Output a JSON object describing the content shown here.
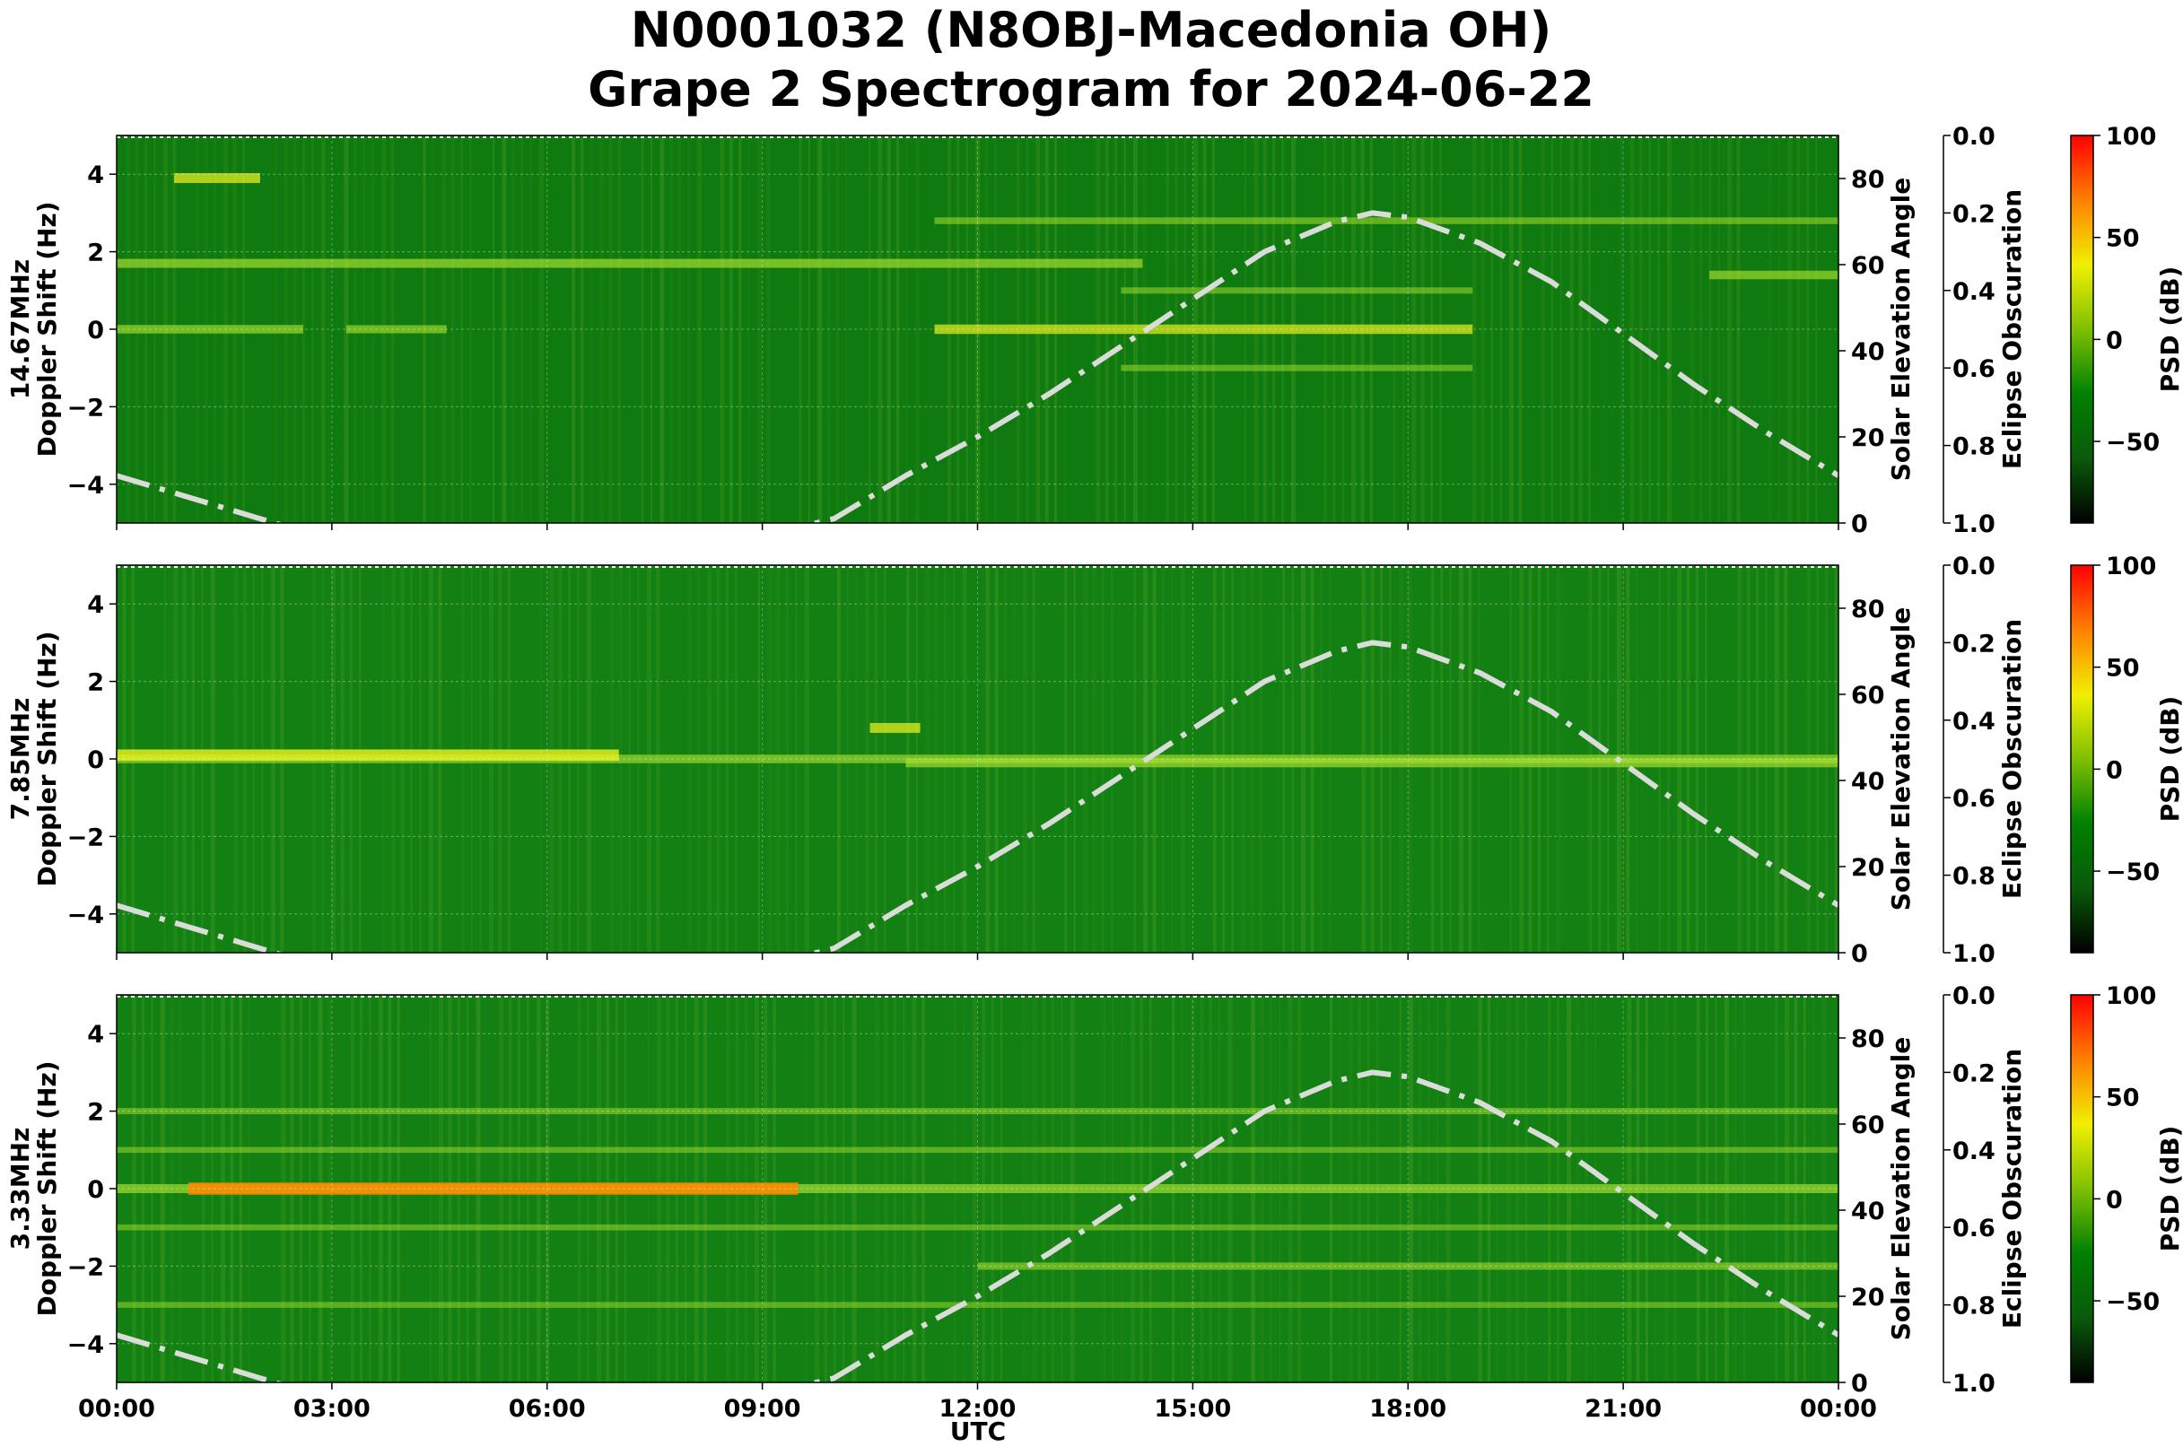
{
  "chart_data": {
    "type": "heatmap",
    "title": "N0001032 (N8OBJ-Macedonia OH)",
    "subtitle": "Grape 2 Spectrogram for 2024-06-22",
    "xlabel": "UTC",
    "x_ticks": [
      "00:00",
      "03:00",
      "06:00",
      "09:00",
      "12:00",
      "15:00",
      "18:00",
      "21:00",
      "00:00"
    ],
    "x_range_hours": [
      0,
      24
    ],
    "ylabel": "Doppler Shift (Hz)",
    "y_range": [
      -5,
      5
    ],
    "y_ticks": [
      -4,
      -2,
      0,
      2,
      4
    ],
    "right_axis_label": "Solar Elevation Angle",
    "right_axis_range": [
      0,
      90
    ],
    "right_axis_ticks": [
      0,
      20,
      40,
      60,
      80
    ],
    "eclipse_axis_label": "Eclipse Obscuration",
    "eclipse_axis_range": [
      1.0,
      0.0
    ],
    "eclipse_axis_ticks": [
      "0.0",
      "0.2",
      "0.4",
      "0.6",
      "0.8",
      "1.0"
    ],
    "colorbar": {
      "label": "PSD (dB)",
      "range": [
        -90,
        100
      ],
      "ticks": [
        -50,
        0,
        50,
        100
      ],
      "colors": [
        "#000000",
        "#0a5a0a",
        "#008000",
        "#7fc000",
        "#f0f000",
        "#ff8000",
        "#ff0000"
      ]
    },
    "grid": true,
    "solar_elevation_curve": {
      "style": "dash-dot",
      "color": "#d9dcd9",
      "x_hours": [
        0,
        1,
        2,
        3,
        4,
        5,
        6,
        7,
        8,
        9,
        10,
        11,
        12,
        13,
        14,
        15,
        16,
        17,
        17.5,
        18,
        19,
        20,
        21,
        22,
        23,
        24
      ],
      "elevation_deg": [
        11,
        6,
        1,
        -4,
        -8,
        -11,
        -12,
        -10,
        -7,
        -3,
        1,
        11,
        20,
        30,
        41,
        52,
        63,
        70,
        72,
        71,
        65,
        56,
        44,
        32,
        21,
        11
      ]
    },
    "panels": [
      {
        "frequency_label": "14.67MHz",
        "background": "#0f7a0f",
        "traces": [
          {
            "start_h": 0.0,
            "end_h": 2.6,
            "doppler_hz": 0.0,
            "level": 0.55
          },
          {
            "start_h": 3.2,
            "end_h": 4.6,
            "doppler_hz": 0.0,
            "level": 0.5
          },
          {
            "start_h": 0.0,
            "end_h": 14.3,
            "doppler_hz": 1.7,
            "level": 0.6
          },
          {
            "start_h": 0.8,
            "end_h": 2.0,
            "doppler_hz": 3.9,
            "level": 0.7
          },
          {
            "start_h": 11.4,
            "end_h": 24.0,
            "doppler_hz": 2.8,
            "level": 0.35
          },
          {
            "start_h": 11.4,
            "end_h": 18.9,
            "doppler_hz": 0.0,
            "level": 0.65
          },
          {
            "start_h": 14.0,
            "end_h": 18.9,
            "doppler_hz": 1.0,
            "level": 0.3
          },
          {
            "start_h": 14.0,
            "end_h": 18.9,
            "doppler_hz": -1.0,
            "level": 0.3
          },
          {
            "start_h": 22.2,
            "end_h": 24.0,
            "doppler_hz": 1.4,
            "level": 0.55
          }
        ]
      },
      {
        "frequency_label": "7.85MHz",
        "background": "#138013",
        "traces": [
          {
            "start_h": 0.0,
            "end_h": 24.0,
            "doppler_hz": 0.0,
            "level": 0.55
          },
          {
            "start_h": 0.0,
            "end_h": 7.0,
            "doppler_hz": 0.1,
            "level": 0.85
          },
          {
            "start_h": 10.5,
            "end_h": 11.2,
            "doppler_hz": 0.8,
            "level": 0.7
          },
          {
            "start_h": 11.0,
            "end_h": 24.0,
            "doppler_hz": -0.1,
            "level": 0.6
          }
        ]
      },
      {
        "frequency_label": "3.33MHz",
        "background": "#138013",
        "traces": [
          {
            "start_h": 0.0,
            "end_h": 24.0,
            "doppler_hz": 0.0,
            "level": 0.6
          },
          {
            "start_h": 1.0,
            "end_h": 9.5,
            "doppler_hz": 0.0,
            "level": 0.95
          },
          {
            "start_h": 0.0,
            "end_h": 24.0,
            "doppler_hz": 2.0,
            "level": 0.3
          },
          {
            "start_h": 0.0,
            "end_h": 24.0,
            "doppler_hz": 1.0,
            "level": 0.25
          },
          {
            "start_h": 0.0,
            "end_h": 24.0,
            "doppler_hz": -1.0,
            "level": 0.25
          },
          {
            "start_h": 0.0,
            "end_h": 24.0,
            "doppler_hz": -3.0,
            "level": 0.25
          },
          {
            "start_h": 12.0,
            "end_h": 24.0,
            "doppler_hz": -2.0,
            "level": 0.4
          }
        ]
      }
    ]
  }
}
